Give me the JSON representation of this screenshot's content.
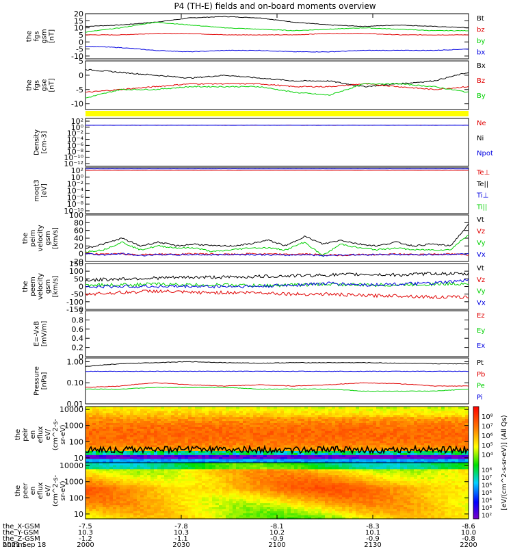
{
  "title": "P4 (TH-E) fields and on-board moments overview",
  "colors": {
    "black": "#000000",
    "red": "#e00000",
    "green": "#00d000",
    "blue": "#0000e0",
    "yellow": "#ffff00"
  },
  "chart_data": [
    {
      "type": "line",
      "panel": "fgs_gsm",
      "ylabel": [
        "the",
        "fgs",
        "gsm",
        "[nT]"
      ],
      "ylim": [
        -12,
        20
      ],
      "yticks": [
        20,
        15,
        10,
        5,
        0,
        -5,
        -10
      ],
      "legend": [
        {
          "name": "Bt",
          "color": "black"
        },
        {
          "name": "bz",
          "color": "red"
        },
        {
          "name": "by",
          "color": "green"
        },
        {
          "name": "bx",
          "color": "blue"
        }
      ],
      "series": [
        {
          "name": "Bt",
          "color": "black",
          "values": [
            11,
            12,
            14,
            17,
            18,
            17,
            14,
            12,
            11,
            12,
            11,
            10
          ]
        },
        {
          "name": "bz",
          "color": "red",
          "values": [
            5,
            5,
            6,
            6,
            5,
            5,
            5,
            6,
            6,
            5,
            5,
            5
          ]
        },
        {
          "name": "by",
          "color": "green",
          "values": [
            7,
            10,
            14,
            12,
            10,
            9,
            8,
            9,
            10,
            9,
            8,
            8
          ]
        },
        {
          "name": "bx",
          "color": "blue",
          "values": [
            -3,
            -4,
            -6,
            -7,
            -6,
            -6,
            -7,
            -7,
            -6,
            -6,
            -6,
            -5
          ]
        }
      ]
    },
    {
      "type": "line",
      "panel": "fgs_gse",
      "ylabel": [
        "the",
        "fgs",
        "gse",
        "[nT]"
      ],
      "ylim": [
        -12,
        5
      ],
      "yticks": [
        5,
        0,
        -5,
        -10
      ],
      "legend": [
        {
          "name": "Bx",
          "color": "black"
        },
        {
          "name": "Bz",
          "color": "red"
        },
        {
          "name": "By",
          "color": "green"
        }
      ],
      "series": [
        {
          "name": "Bx",
          "color": "black",
          "values": [
            2,
            1,
            0,
            -1,
            0,
            -1,
            -2,
            -2,
            -4,
            -3,
            -2,
            1
          ]
        },
        {
          "name": "Bz",
          "color": "red",
          "values": [
            -6,
            -5,
            -4,
            -3,
            -3,
            -3,
            -4,
            -4,
            -3,
            -4,
            -5,
            -4
          ]
        },
        {
          "name": "By",
          "color": "green",
          "values": [
            -8,
            -5,
            -5,
            -4,
            -4,
            -4,
            -6,
            -7,
            -3,
            -3,
            -4,
            -6
          ]
        }
      ]
    },
    {
      "type": "line",
      "panel": "density",
      "ylabel": [
        "Density",
        "[cm-3]"
      ],
      "ylim": [
        1e-12,
        100
      ],
      "scale": "log",
      "yticklabels": [
        "10²",
        "10⁰",
        "10⁻²",
        "10⁻⁴",
        "10⁻⁶",
        "10⁻⁸",
        "10⁻¹⁰",
        "10⁻¹²"
      ],
      "legend": [
        {
          "name": "Ne",
          "color": "red"
        },
        {
          "name": "Ni",
          "color": "black"
        },
        {
          "name": "Npot",
          "color": "blue"
        }
      ],
      "series": [
        {
          "name": "Ne",
          "color": "red",
          "values": [
            1,
            1,
            1,
            1,
            1,
            1,
            1,
            1,
            1,
            1,
            1,
            1
          ]
        },
        {
          "name": "Npot",
          "color": "blue",
          "values": [
            1,
            1,
            1,
            1,
            1,
            1,
            1,
            1,
            1,
            1,
            1,
            1
          ]
        }
      ]
    },
    {
      "type": "line",
      "panel": "moqt3",
      "ylabel": [
        "moqt3",
        "[eV]"
      ],
      "ylim": [
        1e-10,
        100
      ],
      "scale": "log",
      "yticklabels": [
        "10²",
        "10⁰",
        "10⁻²",
        "10⁻⁴",
        "10⁻⁶",
        "10⁻⁸",
        "10⁻¹⁰"
      ],
      "legend": [
        {
          "name": "Te⊥",
          "color": "red"
        },
        {
          "name": "Te||",
          "color": "black"
        },
        {
          "name": "Ti⊥",
          "color": "blue"
        },
        {
          "name": "Ti||",
          "color": "green"
        }
      ],
      "series": [
        {
          "name": "Ti⊥",
          "color": "blue",
          "values": [
            50,
            50,
            50,
            50,
            50,
            50,
            50,
            50,
            50,
            50,
            50,
            50
          ]
        },
        {
          "name": "Te⊥",
          "color": "red",
          "values": [
            20,
            20,
            20,
            20,
            20,
            20,
            20,
            20,
            20,
            20,
            20,
            20
          ]
        }
      ]
    },
    {
      "type": "line",
      "panel": "peim_velocity",
      "ylabel": [
        "the",
        "peim",
        "velocity",
        "gsm",
        "[km/s]"
      ],
      "ylim": [
        -20,
        100
      ],
      "yticks": [
        100,
        80,
        60,
        40,
        20,
        0,
        -20
      ],
      "legend": [
        {
          "name": "Vt",
          "color": "black"
        },
        {
          "name": "Vz",
          "color": "red"
        },
        {
          "name": "Vy",
          "color": "green"
        },
        {
          "name": "Vx",
          "color": "blue"
        }
      ],
      "series": [
        {
          "name": "Vt",
          "color": "black",
          "values": [
            14,
            25,
            40,
            20,
            30,
            20,
            25,
            20,
            20,
            25,
            35,
            20,
            45,
            25,
            35,
            25,
            20,
            30,
            20,
            25,
            20,
            75
          ]
        },
        {
          "name": "Vz",
          "color": "red",
          "values": [
            2,
            -2,
            0,
            -3,
            -1,
            -2,
            0,
            -1,
            -2,
            0,
            -1,
            -2,
            -1,
            -3,
            -4,
            -2,
            -3,
            -1,
            -2,
            -1,
            -1,
            -3
          ]
        },
        {
          "name": "Vy",
          "color": "green",
          "values": [
            5,
            10,
            30,
            10,
            20,
            15,
            15,
            5,
            10,
            15,
            15,
            10,
            30,
            -5,
            25,
            15,
            10,
            15,
            10,
            10,
            10,
            50
          ]
        },
        {
          "name": "Vx",
          "color": "blue",
          "values": [
            0,
            -3,
            0,
            -5,
            -2,
            -3,
            -2,
            -3,
            -2,
            -2,
            -3,
            -4,
            -2,
            -5,
            -3,
            -3,
            -2,
            -2,
            -3,
            -2,
            -2,
            0
          ]
        }
      ]
    },
    {
      "type": "line",
      "panel": "peem_velocity",
      "ylabel": [
        "the",
        "peem",
        "velocity",
        "gsm",
        "[km/s]"
      ],
      "ylim": [
        -150,
        150
      ],
      "yticks": [
        150,
        100,
        50,
        0,
        -50,
        -100,
        -150
      ],
      "legend": [
        {
          "name": "Vt",
          "color": "black"
        },
        {
          "name": "Vz",
          "color": "red"
        },
        {
          "name": "Vy",
          "color": "green"
        },
        {
          "name": "Vx",
          "color": "blue"
        }
      ],
      "series": [
        {
          "name": "Vt",
          "color": "black",
          "values": [
            40,
            50,
            55,
            60,
            60,
            65,
            70,
            75,
            80,
            75,
            85,
            80
          ]
        },
        {
          "name": "Vz",
          "color": "red",
          "values": [
            -50,
            -40,
            -30,
            -40,
            -40,
            -40,
            -50,
            -50,
            -60,
            -60,
            -70,
            -70
          ]
        },
        {
          "name": "Vy",
          "color": "green",
          "values": [
            10,
            10,
            15,
            10,
            10,
            5,
            10,
            15,
            10,
            10,
            15,
            20
          ]
        },
        {
          "name": "Vx",
          "color": "blue",
          "values": [
            -5,
            0,
            0,
            0,
            0,
            0,
            10,
            20,
            10,
            15,
            20,
            40
          ]
        }
      ]
    },
    {
      "type": "line",
      "panel": "efield",
      "ylabel": [
        "E=-VxB",
        "[mV/m]"
      ],
      "ylim": [
        0,
        1
      ],
      "yticks": [
        1.0,
        0.8,
        0.6,
        0.4,
        0.2,
        0.0
      ],
      "legend": [
        {
          "name": "Ez",
          "color": "red"
        },
        {
          "name": "Ey",
          "color": "green"
        },
        {
          "name": "Ex",
          "color": "blue"
        }
      ],
      "series": []
    },
    {
      "type": "line",
      "panel": "pressure",
      "ylabel": [
        "Pressure",
        "[nPa]"
      ],
      "ylim": [
        0.01,
        1.5
      ],
      "scale": "log",
      "yticks": [
        1.0,
        0.1,
        0.01
      ],
      "yticklabels": [
        "1.00",
        "0.10",
        "0.01"
      ],
      "legend": [
        {
          "name": "Pt",
          "color": "black"
        },
        {
          "name": "Pb",
          "color": "red"
        },
        {
          "name": "Pe",
          "color": "green"
        },
        {
          "name": "Pi",
          "color": "blue"
        }
      ],
      "series": [
        {
          "name": "Pt",
          "color": "black",
          "values": [
            0.6,
            0.8,
            0.9,
            1.0,
            0.9,
            0.85,
            0.9,
            0.9,
            0.9,
            0.85,
            0.8,
            0.8
          ]
        },
        {
          "name": "Pi",
          "color": "blue",
          "values": [
            0.35,
            0.35,
            0.35,
            0.35,
            0.35,
            0.35,
            0.35,
            0.35,
            0.35,
            0.35,
            0.35,
            0.35
          ]
        },
        {
          "name": "Pb",
          "color": "red",
          "values": [
            0.06,
            0.07,
            0.1,
            0.08,
            0.07,
            0.08,
            0.07,
            0.08,
            0.1,
            0.09,
            0.07,
            0.07
          ]
        },
        {
          "name": "Pe",
          "color": "green",
          "values": [
            0.05,
            0.05,
            0.06,
            0.06,
            0.06,
            0.05,
            0.05,
            0.05,
            0.04,
            0.04,
            0.04,
            0.05
          ]
        }
      ]
    },
    {
      "type": "heatmap",
      "panel": "peir_en_eflux",
      "ylabel": [
        "the",
        "peir",
        "en",
        "eflux",
        "eV/",
        "(cm^2-s-",
        "sr-eV)"
      ],
      "ylim": [
        5,
        15000
      ],
      "scale": "log",
      "yticks": [
        10000,
        1000,
        100,
        10
      ],
      "yticklabels": [
        "10000",
        "1000",
        "100",
        "10"
      ]
    },
    {
      "type": "heatmap",
      "panel": "peer_en_eflux",
      "ylabel": [
        "the",
        "peer",
        "en",
        "eflux",
        "eV/",
        "(cm^2-s-",
        "sr-eV)"
      ],
      "ylim": [
        5,
        15000
      ],
      "scale": "log",
      "yticks": [
        10000,
        1000,
        100,
        10
      ],
      "yticklabels": [
        "10000",
        "1000",
        "100",
        "10"
      ]
    }
  ],
  "colorbar": {
    "label": "[eV/(cm^2-s-sr-eV)] (All Qs)",
    "ticks_top": [
      "10⁸",
      "10⁷",
      "10⁶",
      "10⁵",
      "10⁴"
    ],
    "ticks_bottom": [
      "10⁸",
      "10⁷",
      "10⁶",
      "10⁵",
      "10⁴",
      "10³",
      "10²"
    ]
  },
  "xaxis": {
    "rows": [
      {
        "label": "the_X-GSM",
        "values": [
          "-7.5",
          "-7.8",
          "-8.1",
          "-8.3",
          "-8.6"
        ]
      },
      {
        "label": "the_Y-GSM",
        "values": [
          "10.3",
          "10.3",
          "10.2",
          "10.1",
          "10.0"
        ]
      },
      {
        "label": "the_Z-GSM",
        "values": [
          "-1.2",
          "-1.1",
          "-0.9",
          "-0.9",
          "-0.8"
        ]
      },
      {
        "label": "hhmm",
        "values": [
          "2000",
          "2030",
          "2100",
          "2130",
          "2200"
        ]
      }
    ],
    "date": "2021 Sep 18"
  }
}
